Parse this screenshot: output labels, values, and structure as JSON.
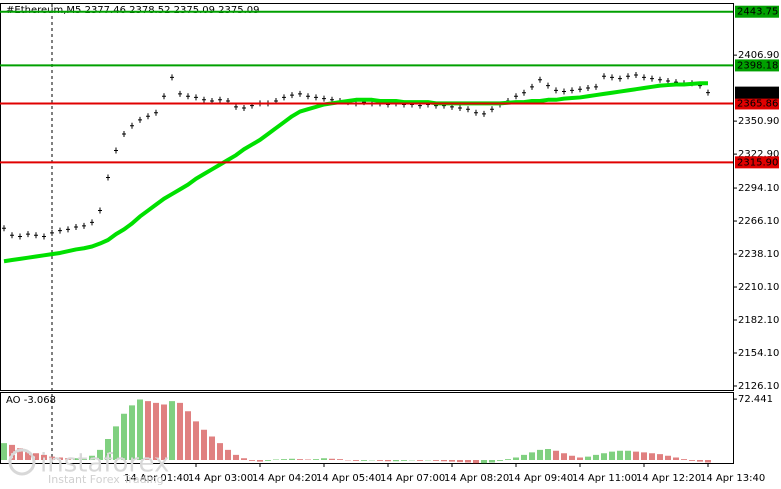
{
  "chart_data": [
    {
      "type": "line",
      "title": "#Ethereum,M5  2377.46 2378.52 2375.09 2375.09",
      "categories": [
        null,
        null,
        null,
        null,
        null,
        null,
        null,
        null,
        null,
        null,
        null,
        null,
        null,
        null,
        null,
        null,
        "14 Apr 01:40",
        null,
        null,
        null,
        null,
        null,
        null,
        null,
        "14 Apr 03:00",
        null,
        null,
        null,
        null,
        null,
        null,
        null,
        "14 Apr 04:20",
        null,
        null,
        null,
        null,
        null,
        null,
        null,
        "14 Apr 05:40",
        null,
        null,
        null,
        null,
        null,
        null,
        null,
        "14 Apr 07:00",
        null,
        null,
        null,
        null,
        null,
        null,
        null,
        "14 Apr 08:20",
        null,
        null,
        null,
        null,
        null,
        null,
        null,
        "14 Apr 09:40",
        null,
        null,
        null,
        null,
        null,
        null,
        null,
        "14 Apr 11:00",
        null,
        null,
        null,
        null,
        null,
        null,
        null,
        "14 Apr 12:20",
        null,
        null,
        null,
        null,
        null,
        null,
        null,
        "14 Apr 13:40"
      ],
      "series": [
        {
          "color": "#000000",
          "style": "ticks",
          "values": [
            2260,
            2254,
            2253,
            2255,
            2254,
            2253,
            2256,
            2258,
            2259,
            2261,
            2262,
            2265,
            2275,
            2303,
            2326,
            2340,
            2347,
            2352,
            2355,
            2358,
            2372,
            2388,
            2374,
            2372,
            2371,
            2369,
            2368,
            2369,
            2368,
            2363,
            2362,
            2364,
            2366,
            2366,
            2368,
            2371,
            2373,
            2374,
            2372,
            2371,
            2370,
            2369,
            2368,
            2367,
            2366,
            2367,
            2366,
            2366,
            2365,
            2366,
            2365,
            2365,
            2364,
            2365,
            2364,
            2364,
            2363,
            2362,
            2361,
            2358,
            2357,
            2361,
            2365,
            2368,
            2372,
            2375,
            2380,
            2386,
            2381,
            2377,
            2376,
            2377,
            2378,
            2379,
            2380,
            2389,
            2388,
            2387,
            2389,
            2390,
            2388,
            2387,
            2386,
            2385,
            2384,
            2383,
            2383,
            2381,
            2375.09
          ]
        },
        {
          "color": "#00e000",
          "style": "line",
          "width": 4,
          "values": [
            2232,
            2233,
            2234,
            2235,
            2236,
            2237,
            2238,
            2239,
            2240.5,
            2242,
            2243,
            2244.5,
            2247,
            2250,
            2255,
            2259,
            2264,
            2270,
            2275,
            2280,
            2285,
            2289,
            2293,
            2297,
            2302,
            2306,
            2310,
            2314,
            2318,
            2322,
            2327,
            2331,
            2335,
            2340,
            2345,
            2350,
            2355,
            2359,
            2361,
            2363,
            2365,
            2366,
            2367,
            2368,
            2369,
            2369,
            2369,
            2368,
            2368,
            2368,
            2367,
            2367,
            2367,
            2367,
            2366,
            2366,
            2366,
            2366,
            2366,
            2366,
            2366,
            2366,
            2366,
            2366.5,
            2367,
            2367,
            2368,
            2368,
            2369,
            2369,
            2370,
            2370.5,
            2371,
            2372,
            2373,
            2374,
            2375,
            2376,
            2377,
            2378,
            2379,
            2380,
            2381,
            2381.5,
            2382,
            2382,
            2382.5,
            2383,
            2383
          ]
        }
      ],
      "ylim": [
        2122.7,
        2450.3
      ],
      "yticks": [
        {
          "value": 2406.9,
          "label": "2406.90"
        },
        {
          "value": 2350.9,
          "label": "2350.90"
        },
        {
          "value": 2322.9,
          "label": "2322.90"
        },
        {
          "value": 2294.1,
          "label": "2294.10"
        },
        {
          "value": 2266.1,
          "label": "2266.10"
        },
        {
          "value": 2238.1,
          "label": "2238.10"
        },
        {
          "value": 2210.1,
          "label": "2210.10"
        },
        {
          "value": 2182.1,
          "label": "2182.10"
        },
        {
          "value": 2154.1,
          "label": "2154.10"
        },
        {
          "value": 2126.1,
          "label": "2126.10"
        }
      ],
      "levels": [
        {
          "value": 2443.75,
          "color": "#00a000",
          "text_color": "#000000"
        },
        {
          "value": 2398.18,
          "color": "#00a000",
          "text_color": "#000000"
        },
        {
          "value": 2365.86,
          "color": "#e00000",
          "text_color": "#ffffff"
        },
        {
          "value": 2315.9,
          "label": "2315.90",
          "color": "#e00000",
          "text_color": "#ffffff"
        }
      ],
      "grid": false
    },
    {
      "type": "histogram",
      "title": "AO -3.068",
      "series": [
        {
          "up_color": "#00a000",
          "down_color": "#c00000",
          "values": [
            20,
            18,
            14,
            10,
            8,
            6,
            4,
            3,
            2,
            2,
            3,
            5,
            12,
            25,
            40,
            55,
            65,
            72,
            70,
            68,
            66,
            70,
            68,
            58,
            46,
            36,
            28,
            20,
            12,
            6,
            2,
            -1,
            -2,
            -1,
            0.5,
            1,
            1.5,
            1,
            0.5,
            1,
            2,
            1.5,
            1,
            -0.5,
            -1,
            -1,
            -0.5,
            -1,
            -1.5,
            -1.5,
            -1,
            -0.5,
            -1,
            -0.5,
            -1,
            -1.5,
            -2,
            -2.5,
            -3,
            -4,
            -4,
            -3,
            -1,
            1,
            3,
            6,
            9,
            12,
            13,
            11,
            8,
            5,
            3,
            4,
            6,
            8,
            10,
            11,
            11,
            10,
            9,
            8,
            7,
            5,
            3,
            1,
            -1,
            -2,
            -3.068
          ]
        }
      ],
      "ylim": [
        -3.6,
        79.7
      ],
      "yticks": [
        72.441
      ],
      "grid": false
    }
  ],
  "watermark": {
    "brand": "instaforex",
    "tagline": "Instant Forex Trading"
  }
}
